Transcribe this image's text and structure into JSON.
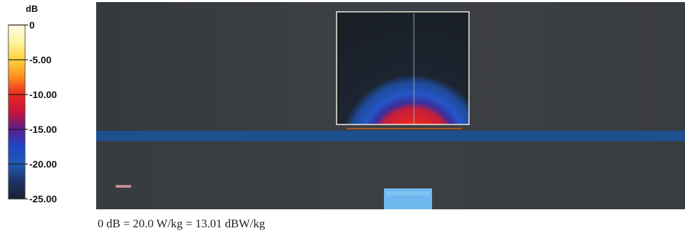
{
  "chart_data": {
    "type": "heatmap",
    "title": "",
    "colorbar": {
      "unit": "dB",
      "range": [
        -25,
        0
      ],
      "ticks": [
        {
          "value": 0,
          "label": "0"
        },
        {
          "value": -5,
          "label": "-5.00"
        },
        {
          "value": -10,
          "label": "-10.00"
        },
        {
          "value": -15,
          "label": "-15.00"
        },
        {
          "value": -20,
          "label": "-20.00"
        },
        {
          "value": -25,
          "label": "-25.00"
        }
      ],
      "colors": [
        {
          "value": 0,
          "color": "#fffbe0"
        },
        {
          "value": -2.5,
          "color": "#fff3a0"
        },
        {
          "value": -5,
          "color": "#ffd23c"
        },
        {
          "value": -7.5,
          "color": "#ff8c1e"
        },
        {
          "value": -10,
          "color": "#e8281e"
        },
        {
          "value": -12.5,
          "color": "#c8143c"
        },
        {
          "value": -15,
          "color": "#5a1e8c"
        },
        {
          "value": -17.5,
          "color": "#1e46c8"
        },
        {
          "value": -20,
          "color": "#1e5ab4"
        },
        {
          "value": -22.5,
          "color": "#1e3264"
        },
        {
          "value": -25,
          "color": "#1a2232"
        }
      ]
    },
    "reference": "0 dB = 20.0 W/kg = 13.01 dBW/kg",
    "colors": {
      "background": "#3a3d42",
      "band": "#1e4f8e",
      "outline": "#f2ede0",
      "hotspot_red": "#e22525",
      "hotspot_orange": "#f39a1c",
      "hotspot_blue": "#2456c8",
      "source_block": "#6fb8ef"
    }
  }
}
